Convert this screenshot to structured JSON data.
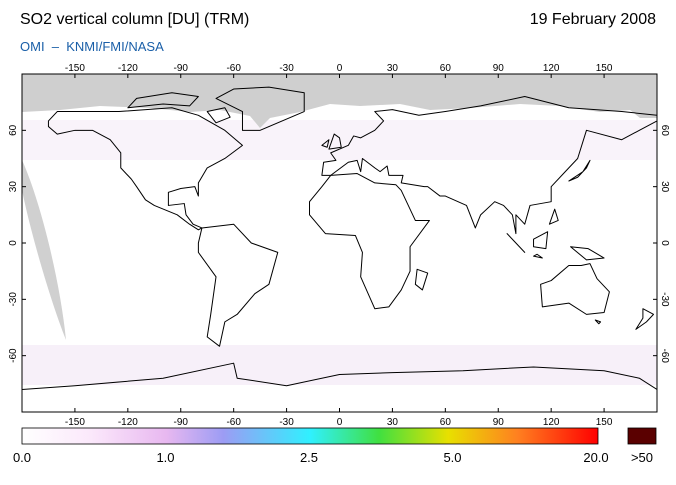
{
  "header": {
    "title": "SO2 vertical column [DU] (TRM)",
    "date": "19 February 2008",
    "source": "OMI  –  KNMI/FMI/NASA"
  },
  "map": {
    "xlim": [
      -180,
      180
    ],
    "ylim": [
      -90,
      90
    ],
    "lon_ticks": [
      -150,
      -120,
      -90,
      -60,
      -30,
      0,
      30,
      60,
      90,
      120,
      150
    ],
    "lat_ticks": [
      60,
      30,
      0,
      -30,
      -60
    ]
  },
  "colorbar": {
    "labels": [
      "0.0",
      "1.0",
      "2.5",
      "5.0",
      "20.0"
    ],
    "overflow": ">50"
  }
}
